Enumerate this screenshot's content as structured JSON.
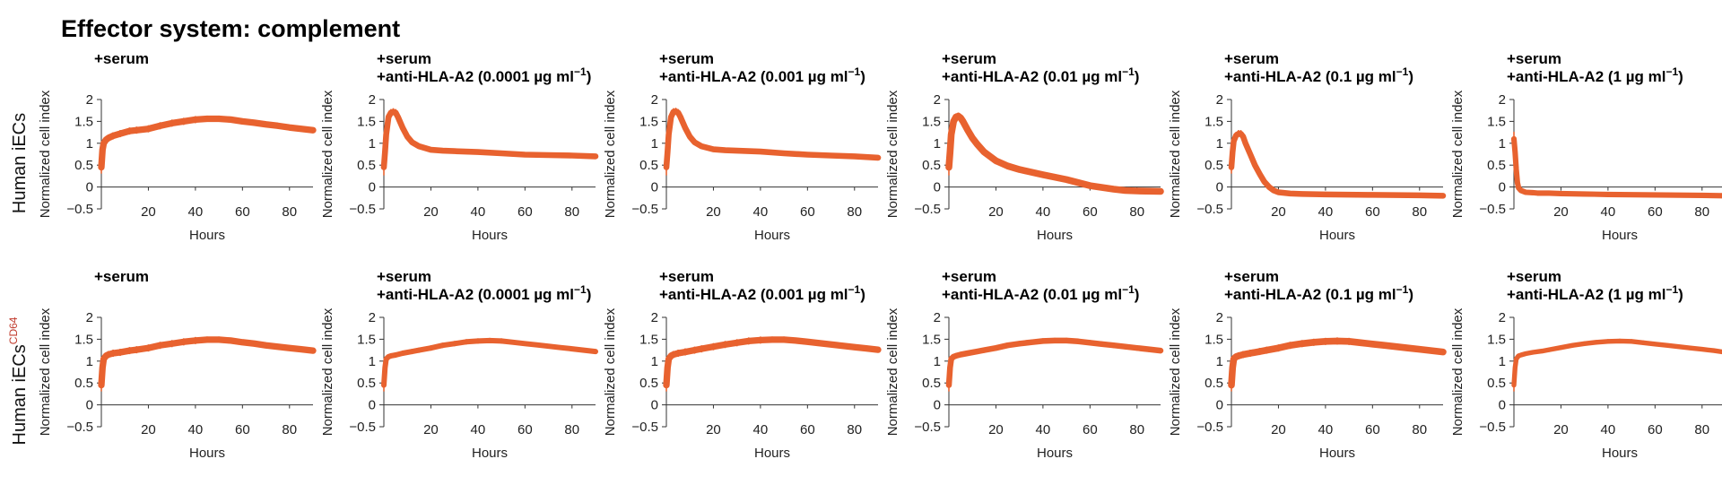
{
  "figure_title": "Effector system: complement",
  "row_labels": [
    {
      "main": "Human iECs",
      "sup": ""
    },
    {
      "main": "Human iECs",
      "sup": "CD64"
    }
  ],
  "chart_data": {
    "type": "line",
    "xlabel": "Hours",
    "ylabel": "Normalized cell index",
    "xlim": [
      0,
      90
    ],
    "ylim": [
      -0.5,
      2
    ],
    "xticks": [
      "20",
      "40",
      "60",
      "80"
    ],
    "yticks": [
      "−0.5",
      "0",
      "0.5",
      "1",
      "1.5",
      "2"
    ],
    "line_color": "#e8622f",
    "panels": [
      {
        "row": 0,
        "col": 0,
        "title1": "+serum",
        "title2": "",
        "unit_sup": "",
        "x": [
          0,
          0.5,
          1,
          2,
          3,
          5,
          8,
          12,
          15,
          20,
          25,
          30,
          35,
          40,
          45,
          50,
          55,
          60,
          65,
          70,
          75,
          80,
          85,
          90
        ],
        "y": [
          0.45,
          0.85,
          1.0,
          1.08,
          1.12,
          1.17,
          1.22,
          1.28,
          1.3,
          1.33,
          1.4,
          1.46,
          1.5,
          1.54,
          1.56,
          1.56,
          1.54,
          1.5,
          1.47,
          1.43,
          1.4,
          1.36,
          1.33,
          1.3
        ],
        "thick": [
          14,
          10,
          8,
          8,
          8,
          8,
          8,
          8,
          8,
          8,
          8,
          8,
          8,
          8,
          7,
          7,
          6,
          6,
          6,
          5,
          5,
          5,
          4,
          4
        ]
      },
      {
        "row": 0,
        "col": 1,
        "title1": "+serum",
        "title2": "+anti-HLA-A2 (0.0001 µg ml",
        "unit_sup": "−1",
        "x": [
          0,
          0.5,
          1,
          2,
          3,
          4,
          5,
          6,
          8,
          10,
          12,
          15,
          20,
          25,
          30,
          40,
          50,
          60,
          70,
          80,
          90
        ],
        "y": [
          0.45,
          0.8,
          1.2,
          1.6,
          1.7,
          1.72,
          1.7,
          1.6,
          1.35,
          1.15,
          1.02,
          0.93,
          0.85,
          0.83,
          0.82,
          0.8,
          0.77,
          0.74,
          0.73,
          0.72,
          0.7
        ],
        "thick": [
          18,
          14,
          10,
          8,
          8,
          8,
          8,
          8,
          7,
          6,
          6,
          5,
          5,
          4,
          4,
          4,
          3,
          3,
          3,
          3,
          3
        ]
      },
      {
        "row": 0,
        "col": 2,
        "title1": "+serum",
        "title2": "+anti-HLA-A2 (0.001 µg ml",
        "unit_sup": "−1",
        "x": [
          0,
          0.5,
          1,
          2,
          3,
          4,
          5,
          6,
          8,
          10,
          12,
          15,
          20,
          25,
          30,
          40,
          50,
          60,
          70,
          80,
          90
        ],
        "y": [
          0.45,
          0.8,
          1.2,
          1.6,
          1.72,
          1.73,
          1.7,
          1.6,
          1.35,
          1.15,
          1.02,
          0.93,
          0.86,
          0.84,
          0.83,
          0.81,
          0.77,
          0.74,
          0.72,
          0.7,
          0.67
        ],
        "thick": [
          18,
          14,
          10,
          8,
          8,
          8,
          8,
          8,
          7,
          6,
          6,
          5,
          5,
          4,
          4,
          4,
          3,
          3,
          3,
          3,
          3
        ]
      },
      {
        "row": 0,
        "col": 3,
        "title1": "+serum",
        "title2": "+anti-HLA-A2 (0.01 µg ml",
        "unit_sup": "−1",
        "x": [
          0,
          0.5,
          1,
          2,
          3,
          4,
          5,
          6,
          8,
          10,
          12,
          15,
          20,
          25,
          30,
          40,
          50,
          60,
          70,
          75,
          80,
          90
        ],
        "y": [
          0.45,
          0.8,
          1.2,
          1.5,
          1.6,
          1.62,
          1.58,
          1.5,
          1.3,
          1.12,
          0.98,
          0.8,
          0.6,
          0.48,
          0.4,
          0.28,
          0.17,
          0.03,
          -0.05,
          -0.08,
          -0.09,
          -0.1
        ],
        "thick": [
          18,
          14,
          10,
          8,
          8,
          8,
          8,
          8,
          8,
          8,
          8,
          8,
          8,
          7,
          7,
          6,
          6,
          5,
          4,
          4,
          4,
          3
        ]
      },
      {
        "row": 0,
        "col": 4,
        "title1": "+serum",
        "title2": "+anti-HLA-A2 (0.1 µg ml",
        "unit_sup": "−1",
        "x": [
          0,
          0.5,
          1,
          2,
          3,
          4,
          5,
          6,
          8,
          10,
          12,
          14,
          16,
          18,
          20,
          25,
          30,
          40,
          60,
          80,
          90
        ],
        "y": [
          0.45,
          0.8,
          1.05,
          1.18,
          1.22,
          1.22,
          1.15,
          1.0,
          0.75,
          0.5,
          0.3,
          0.12,
          0.0,
          -0.08,
          -0.12,
          -0.15,
          -0.16,
          -0.17,
          -0.18,
          -0.19,
          -0.2
        ],
        "thick": [
          14,
          12,
          10,
          8,
          8,
          8,
          8,
          8,
          8,
          8,
          7,
          6,
          5,
          4,
          4,
          3,
          3,
          3,
          3,
          3,
          3
        ]
      },
      {
        "row": 0,
        "col": 5,
        "title1": "+serum",
        "title2": "+anti-HLA-A2 (1 µg ml",
        "unit_sup": "−1",
        "x": [
          0,
          0.5,
          1,
          1.5,
          2,
          3,
          4,
          5,
          8,
          10,
          15,
          20,
          30,
          40,
          60,
          80,
          90
        ],
        "y": [
          1.1,
          0.8,
          0.4,
          0.1,
          -0.02,
          -0.08,
          -0.1,
          -0.12,
          -0.13,
          -0.14,
          -0.14,
          -0.15,
          -0.16,
          -0.17,
          -0.18,
          -0.19,
          -0.2
        ],
        "thick": [
          16,
          14,
          12,
          10,
          8,
          6,
          5,
          4,
          4,
          3,
          3,
          3,
          3,
          3,
          3,
          3,
          3
        ]
      },
      {
        "row": 1,
        "col": 0,
        "title1": "+serum",
        "title2": "",
        "unit_sup": "",
        "x": [
          0,
          0.5,
          1,
          2,
          3,
          5,
          8,
          12,
          15,
          20,
          25,
          30,
          35,
          40,
          45,
          50,
          55,
          60,
          65,
          70,
          75,
          80,
          85,
          90
        ],
        "y": [
          0.45,
          0.85,
          1.05,
          1.12,
          1.15,
          1.18,
          1.2,
          1.24,
          1.26,
          1.3,
          1.36,
          1.4,
          1.44,
          1.47,
          1.49,
          1.49,
          1.47,
          1.43,
          1.4,
          1.36,
          1.33,
          1.3,
          1.27,
          1.24
        ],
        "thick": [
          14,
          10,
          8,
          8,
          8,
          8,
          8,
          8,
          8,
          8,
          8,
          8,
          8,
          8,
          7,
          7,
          6,
          6,
          6,
          5,
          5,
          5,
          4,
          4
        ]
      },
      {
        "row": 1,
        "col": 1,
        "title1": "+serum",
        "title2": "+anti-HLA-A2 (0.0001 µg ml",
        "unit_sup": "−1",
        "x": [
          0,
          0.5,
          1,
          2,
          3,
          5,
          8,
          12,
          15,
          20,
          25,
          30,
          35,
          40,
          45,
          50,
          55,
          60,
          65,
          70,
          75,
          80,
          85,
          90
        ],
        "y": [
          0.45,
          0.85,
          1.05,
          1.1,
          1.12,
          1.14,
          1.18,
          1.22,
          1.25,
          1.3,
          1.36,
          1.4,
          1.44,
          1.46,
          1.47,
          1.46,
          1.43,
          1.4,
          1.37,
          1.34,
          1.31,
          1.28,
          1.25,
          1.22
        ],
        "thick": [
          14,
          10,
          7,
          6,
          6,
          6,
          6,
          6,
          6,
          6,
          6,
          6,
          6,
          6,
          6,
          6,
          5,
          5,
          5,
          5,
          4,
          4,
          4,
          4
        ]
      },
      {
        "row": 1,
        "col": 2,
        "title1": "+serum",
        "title2": "+anti-HLA-A2 (0.001 µg ml",
        "unit_sup": "−1",
        "x": [
          0,
          0.5,
          1,
          2,
          3,
          5,
          8,
          12,
          15,
          20,
          25,
          30,
          35,
          40,
          45,
          50,
          55,
          60,
          65,
          70,
          75,
          80,
          85,
          90
        ],
        "y": [
          0.45,
          0.85,
          1.05,
          1.12,
          1.15,
          1.18,
          1.21,
          1.25,
          1.28,
          1.33,
          1.38,
          1.42,
          1.46,
          1.48,
          1.49,
          1.49,
          1.47,
          1.44,
          1.41,
          1.38,
          1.35,
          1.32,
          1.29,
          1.26
        ],
        "thick": [
          14,
          10,
          8,
          8,
          8,
          8,
          8,
          8,
          8,
          8,
          8,
          8,
          8,
          8,
          7,
          7,
          6,
          6,
          6,
          5,
          5,
          5,
          4,
          4
        ]
      },
      {
        "row": 1,
        "col": 3,
        "title1": "+serum",
        "title2": "+anti-HLA-A2 (0.01 µg ml",
        "unit_sup": "−1",
        "x": [
          0,
          0.5,
          1,
          2,
          3,
          5,
          8,
          12,
          15,
          20,
          25,
          30,
          35,
          40,
          45,
          50,
          55,
          60,
          65,
          70,
          75,
          80,
          85,
          90
        ],
        "y": [
          0.45,
          0.85,
          1.05,
          1.1,
          1.12,
          1.15,
          1.18,
          1.22,
          1.25,
          1.3,
          1.36,
          1.4,
          1.43,
          1.46,
          1.47,
          1.47,
          1.45,
          1.42,
          1.39,
          1.36,
          1.33,
          1.3,
          1.27,
          1.24
        ],
        "thick": [
          14,
          10,
          7,
          6,
          6,
          6,
          6,
          6,
          6,
          6,
          6,
          6,
          6,
          6,
          6,
          6,
          6,
          6,
          6,
          6,
          6,
          6,
          6,
          6
        ]
      },
      {
        "row": 1,
        "col": 4,
        "title1": "+serum",
        "title2": "+anti-HLA-A2 (0.1 µg ml",
        "unit_sup": "−1",
        "x": [
          0,
          0.5,
          1,
          2,
          3,
          5,
          8,
          12,
          15,
          20,
          25,
          30,
          35,
          40,
          45,
          50,
          55,
          60,
          65,
          70,
          75,
          80,
          85,
          90
        ],
        "y": [
          0.45,
          0.85,
          1.05,
          1.1,
          1.12,
          1.15,
          1.18,
          1.22,
          1.25,
          1.3,
          1.36,
          1.4,
          1.43,
          1.45,
          1.46,
          1.45,
          1.42,
          1.39,
          1.36,
          1.33,
          1.3,
          1.27,
          1.24,
          1.21
        ],
        "thick": [
          14,
          10,
          8,
          8,
          8,
          8,
          8,
          8,
          8,
          8,
          8,
          8,
          8,
          8,
          8,
          8,
          7,
          7,
          6,
          6,
          6,
          5,
          5,
          5
        ]
      },
      {
        "row": 1,
        "col": 5,
        "title1": "+serum",
        "title2": "+anti-HLA-A2 (1 µg ml",
        "unit_sup": "−1",
        "x": [
          0,
          0.5,
          1,
          2,
          3,
          5,
          8,
          12,
          15,
          20,
          25,
          30,
          35,
          40,
          45,
          50,
          55,
          60,
          65,
          70,
          75,
          80,
          85,
          90
        ],
        "y": [
          0.45,
          0.85,
          1.05,
          1.12,
          1.14,
          1.17,
          1.2,
          1.23,
          1.26,
          1.31,
          1.36,
          1.4,
          1.43,
          1.45,
          1.46,
          1.45,
          1.42,
          1.39,
          1.36,
          1.33,
          1.3,
          1.27,
          1.24,
          1.2
        ],
        "thick": [
          14,
          10,
          7,
          5,
          5,
          5,
          5,
          5,
          5,
          5,
          5,
          5,
          5,
          5,
          5,
          5,
          5,
          4,
          4,
          4,
          4,
          4,
          4,
          4
        ]
      }
    ]
  }
}
